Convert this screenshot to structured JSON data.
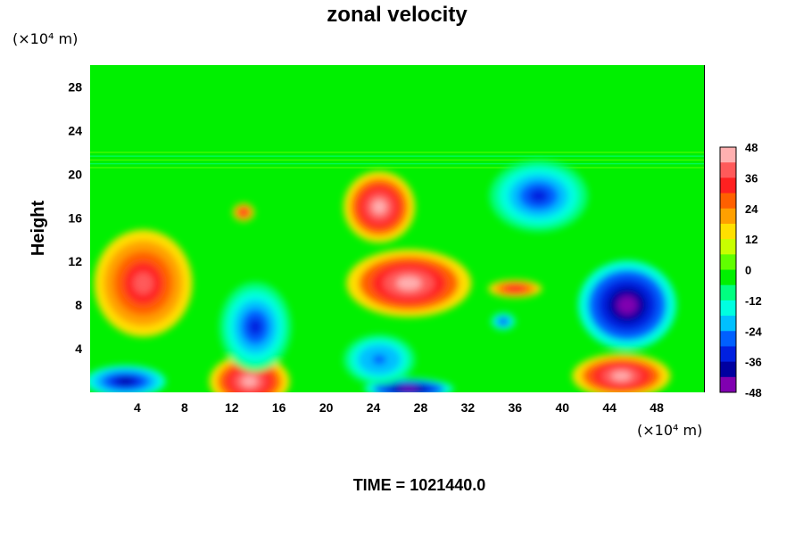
{
  "chart_data": {
    "type": "heatmap",
    "title": "zonal velocity",
    "xlabel": "",
    "ylabel": "Height",
    "x_unit": "(×10⁴ m)",
    "y_unit": "(×10⁴ m)",
    "xlim": [
      0,
      52
    ],
    "ylim": [
      0,
      30
    ],
    "x_ticks": [
      4,
      8,
      12,
      16,
      20,
      24,
      28,
      32,
      36,
      40,
      44,
      48
    ],
    "y_ticks": [
      4,
      8,
      12,
      16,
      20,
      24,
      28
    ],
    "colorbar": {
      "min": -48,
      "max": 48,
      "ticks": [
        48,
        36,
        24,
        12,
        0,
        -12,
        -24,
        -36,
        -48
      ],
      "colors": [
        "#ffb0b0",
        "#ff5a5a",
        "#ff2020",
        "#ff6000",
        "#ffa000",
        "#ffe000",
        "#c8ff00",
        "#60ff00",
        "#00f000",
        "#00ff80",
        "#00ffe0",
        "#00c0ff",
        "#0060ff",
        "#0020e0",
        "#0000a0",
        "#8000b0"
      ]
    },
    "features": [
      {
        "x": 27,
        "y": 10,
        "value": 48
      },
      {
        "x": 24.5,
        "y": 17,
        "value": 48
      },
      {
        "x": 13.5,
        "y": 1,
        "value": 48
      },
      {
        "x": 45,
        "y": 1.5,
        "value": 48
      },
      {
        "x": 4.5,
        "y": 10,
        "value": 38
      },
      {
        "x": 13,
        "y": 16.5,
        "value": 36
      },
      {
        "x": 36,
        "y": 9.5,
        "value": 36
      },
      {
        "x": 45.5,
        "y": 8,
        "value": -48
      },
      {
        "x": 27,
        "y": 0.3,
        "value": -48
      },
      {
        "x": 3,
        "y": 1,
        "value": -40
      },
      {
        "x": 14,
        "y": 6,
        "value": -34
      },
      {
        "x": 38,
        "y": 18,
        "value": -30
      },
      {
        "x": 24.5,
        "y": 3,
        "value": -28
      },
      {
        "x": 35,
        "y": 6.5,
        "value": -32
      }
    ]
  },
  "footer": {
    "time_label": "TIME = 1021440.0"
  }
}
